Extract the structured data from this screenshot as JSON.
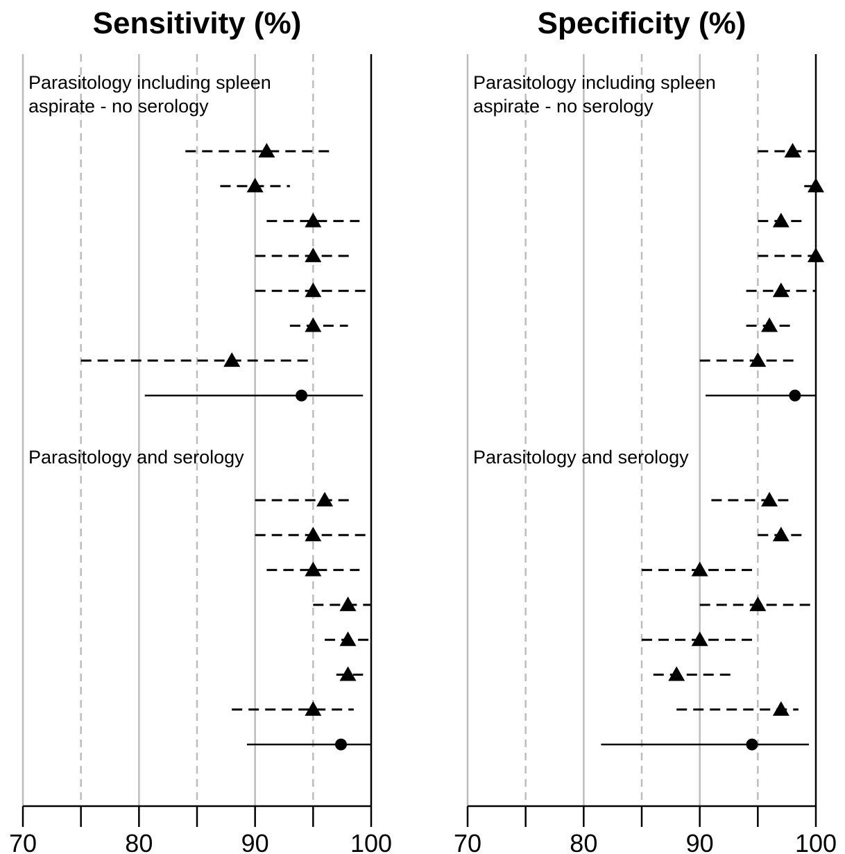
{
  "chart_data": [
    {
      "type": "forest",
      "title": "Sensitivity (%)",
      "xlim": [
        70,
        100
      ],
      "xticks": [
        "70",
        "80",
        "90",
        "100"
      ],
      "grid": {
        "solid": [
          70,
          80,
          90
        ],
        "dashed": [
          75,
          85,
          95
        ],
        "reference": 100
      },
      "groups": [
        {
          "label_lines": [
            "Parasitology including spleen",
            "aspirate - no serology"
          ],
          "studies": [
            {
              "estimate": 91,
              "lower": 84,
              "upper": 96.5
            },
            {
              "estimate": 90,
              "lower": 87,
              "upper": 93
            },
            {
              "estimate": 95,
              "lower": 91,
              "upper": 99
            },
            {
              "estimate": 95,
              "lower": 90,
              "upper": 98.5
            },
            {
              "estimate": 95,
              "lower": 90,
              "upper": 100
            },
            {
              "estimate": 95,
              "lower": 93,
              "upper": 98
            },
            {
              "estimate": 88,
              "lower": 75,
              "upper": 95
            }
          ],
          "pooled": {
            "estimate": 94,
            "lower": 80.5,
            "upper": 99.3
          }
        },
        {
          "label_lines": [
            "Parasitology and serology"
          ],
          "studies": [
            {
              "estimate": 96,
              "lower": 90,
              "upper": 98.5
            },
            {
              "estimate": 95,
              "lower": 90,
              "upper": 100
            },
            {
              "estimate": 95,
              "lower": 91,
              "upper": 99
            },
            {
              "estimate": 98,
              "lower": 95,
              "upper": 100
            },
            {
              "estimate": 98,
              "lower": 96,
              "upper": 100
            },
            {
              "estimate": 98,
              "lower": 97,
              "upper": 99.3
            },
            {
              "estimate": 95,
              "lower": 88,
              "upper": 98.5
            }
          ],
          "pooled": {
            "estimate": 97.4,
            "lower": 89.3,
            "upper": 100
          }
        }
      ]
    },
    {
      "type": "forest",
      "title": "Specificity (%)",
      "xlim": [
        70,
        100
      ],
      "xticks": [
        "70",
        "80",
        "90",
        "100"
      ],
      "grid": {
        "solid": [
          70,
          80,
          90
        ],
        "dashed": [
          75,
          85,
          95
        ],
        "reference": 100
      },
      "groups": [
        {
          "label_lines": [
            "Parasitology including spleen",
            "aspirate - no serology"
          ],
          "studies": [
            {
              "estimate": 98,
              "lower": 95,
              "upper": 100
            },
            {
              "estimate": 100,
              "lower": 99,
              "upper": 100
            },
            {
              "estimate": 97,
              "lower": 95,
              "upper": 99
            },
            {
              "estimate": 100,
              "lower": 95,
              "upper": 100
            },
            {
              "estimate": 97,
              "lower": 94,
              "upper": 100
            },
            {
              "estimate": 96,
              "lower": 94,
              "upper": 98
            },
            {
              "estimate": 95,
              "lower": 90,
              "upper": 98.5
            }
          ],
          "pooled": {
            "estimate": 98.2,
            "lower": 90.5,
            "upper": 100
          }
        },
        {
          "label_lines": [
            "Parasitology and serology"
          ],
          "studies": [
            {
              "estimate": 96,
              "lower": 91,
              "upper": 97.8
            },
            {
              "estimate": 97,
              "lower": 95,
              "upper": 99
            },
            {
              "estimate": 90,
              "lower": 85,
              "upper": 95
            },
            {
              "estimate": 95,
              "lower": 90,
              "upper": 100
            },
            {
              "estimate": 90,
              "lower": 85,
              "upper": 95
            },
            {
              "estimate": 88,
              "lower": 86,
              "upper": 93
            },
            {
              "estimate": 97,
              "lower": 88,
              "upper": 98.5
            }
          ],
          "pooled": {
            "estimate": 94.5,
            "lower": 81.5,
            "upper": 99.4
          }
        }
      ]
    }
  ]
}
